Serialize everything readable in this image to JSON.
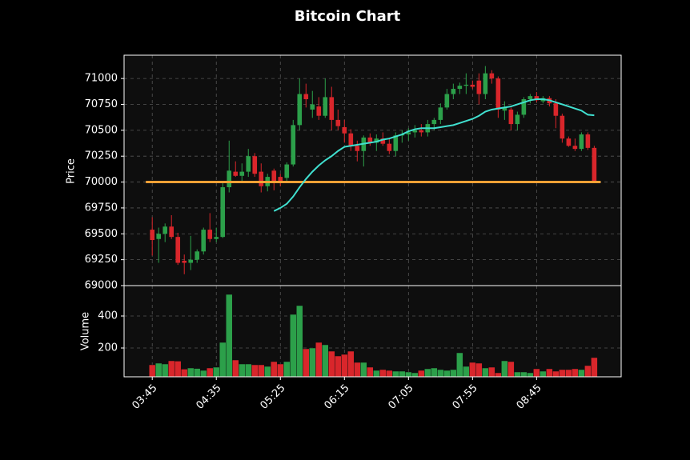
{
  "chart_data": {
    "type": "candlestick",
    "title": "Bitcoin Chart",
    "ylabel": "Price",
    "volume_label": "Volume",
    "categories": [
      "03:45",
      null,
      null,
      null,
      null,
      null,
      null,
      null,
      null,
      null,
      "04:35",
      null,
      null,
      null,
      null,
      null,
      null,
      null,
      null,
      null,
      "05:25",
      null,
      null,
      null,
      null,
      null,
      null,
      null,
      null,
      null,
      "06:15",
      null,
      null,
      null,
      null,
      null,
      null,
      null,
      null,
      null,
      "07:05",
      null,
      null,
      null,
      null,
      null,
      null,
      null,
      null,
      null,
      "07:55",
      null,
      null,
      null,
      null,
      null,
      null,
      null,
      null,
      null,
      "08:45",
      null,
      null,
      null,
      null,
      null,
      null,
      null,
      null,
      null
    ],
    "open": [
      69540,
      69450,
      69500,
      69570,
      69470,
      69240,
      69220,
      69250,
      69330,
      69540,
      69450,
      69470,
      69950,
      70100,
      70060,
      70100,
      70250,
      70100,
      69960,
      70110,
      70050,
      70040,
      70170,
      70550,
      70850,
      70700,
      70730,
      70640,
      70820,
      70600,
      70530,
      70470,
      70350,
      70300,
      70430,
      70380,
      70420,
      70370,
      70300,
      70450,
      70460,
      70480,
      70500,
      70480,
      70560,
      70600,
      70720,
      70850,
      70900,
      70930,
      70940,
      70980,
      70850,
      71050,
      71000,
      70690,
      70700,
      70560,
      70650,
      70800,
      70830,
      70780,
      70810,
      70760,
      70640,
      70420,
      70350,
      70320,
      70460,
      70330
    ],
    "high": [
      69660,
      69560,
      69600,
      69680,
      69510,
      69300,
      69480,
      69350,
      69560,
      69700,
      69560,
      70000,
      70400,
      70200,
      70180,
      70320,
      70280,
      70180,
      70080,
      70130,
      70080,
      70190,
      70600,
      71000,
      70950,
      70880,
      70820,
      71000,
      70920,
      70700,
      70600,
      70510,
      70400,
      70450,
      70470,
      70460,
      70480,
      70420,
      70480,
      70500,
      70520,
      70550,
      70560,
      70600,
      70620,
      70760,
      70900,
      70950,
      70960,
      71050,
      70980,
      71050,
      71120,
      71080,
      71020,
      70780,
      70720,
      70680,
      70820,
      70850,
      70870,
      70830,
      70830,
      70800,
      70660,
      70440,
      70420,
      70480,
      70480,
      70350
    ],
    "low": [
      69290,
      69220,
      69420,
      69450,
      69200,
      69110,
      69150,
      69220,
      69300,
      69420,
      69420,
      69460,
      69900,
      70050,
      70000,
      70050,
      70050,
      69900,
      69910,
      69920,
      69960,
      70000,
      70150,
      70500,
      70720,
      70620,
      70600,
      70620,
      70500,
      70500,
      70380,
      70300,
      70200,
      70150,
      70350,
      70300,
      70350,
      70270,
      70250,
      70380,
      70400,
      70430,
      70440,
      70440,
      70500,
      70560,
      70700,
      70800,
      70850,
      70850,
      70900,
      70750,
      70800,
      70950,
      70620,
      70600,
      70500,
      70500,
      70620,
      70760,
      70770,
      70760,
      70730,
      70520,
      70380,
      70340,
      70300,
      70300,
      70310,
      70000
    ],
    "close": [
      69440,
      69500,
      69570,
      69470,
      69220,
      69220,
      69250,
      69330,
      69540,
      69450,
      69470,
      69950,
      70110,
      70060,
      70100,
      70250,
      70080,
      69960,
      70050,
      69990,
      69990,
      70170,
      70550,
      70850,
      70800,
      70750,
      70640,
      70820,
      70600,
      70540,
      70470,
      70350,
      70300,
      70430,
      70380,
      70420,
      70370,
      70300,
      70450,
      70460,
      70480,
      70500,
      70480,
      70560,
      70600,
      70720,
      70850,
      70900,
      70930,
      70940,
      70920,
      70850,
      71050,
      71000,
      70700,
      70720,
      70560,
      70650,
      70800,
      70830,
      70790,
      70810,
      70760,
      70640,
      70420,
      70350,
      70320,
      70460,
      70330,
      70000
    ],
    "volume": [
      95,
      105,
      100,
      120,
      118,
      68,
      75,
      72,
      60,
      75,
      80,
      235,
      535,
      125,
      100,
      100,
      95,
      95,
      85,
      115,
      100,
      115,
      410,
      465,
      195,
      200,
      235,
      220,
      180,
      150,
      160,
      180,
      110,
      110,
      80,
      60,
      65,
      60,
      55,
      55,
      50,
      45,
      60,
      70,
      75,
      65,
      60,
      65,
      170,
      85,
      110,
      105,
      75,
      80,
      45,
      120,
      115,
      50,
      50,
      45,
      70,
      55,
      70,
      55,
      65,
      65,
      70,
      65,
      90,
      140
    ],
    "ma": {
      "color": "#40e0d0",
      "values": [
        null,
        null,
        null,
        null,
        null,
        null,
        null,
        null,
        null,
        null,
        null,
        null,
        null,
        null,
        null,
        null,
        null,
        null,
        null,
        69720,
        69750,
        69790,
        69860,
        69950,
        70030,
        70100,
        70160,
        70210,
        70250,
        70300,
        70340,
        70350,
        70360,
        70370,
        70380,
        70390,
        70410,
        70420,
        70440,
        70460,
        70490,
        70510,
        70520,
        70520,
        70520,
        70530,
        70540,
        70550,
        70570,
        70590,
        70610,
        70640,
        70680,
        70700,
        70710,
        70720,
        70730,
        70750,
        70770,
        70790,
        70800,
        70800,
        70790,
        70770,
        70750,
        70730,
        70710,
        70690,
        70650,
        70645
      ]
    },
    "hline": {
      "value": 70000,
      "color": "#f5a035"
    },
    "up_color": "#2ca04a",
    "down_color": "#d9262b",
    "xlim": [
      -4.4,
      73.2
    ],
    "ylim": [
      69000,
      71225
    ],
    "yticks": [
      69000,
      69250,
      69500,
      69750,
      70000,
      70250,
      70500,
      70750,
      71000
    ],
    "volume_ylim": [
      20,
      590
    ],
    "volume_yticks": [
      200,
      400
    ],
    "grid": true
  }
}
